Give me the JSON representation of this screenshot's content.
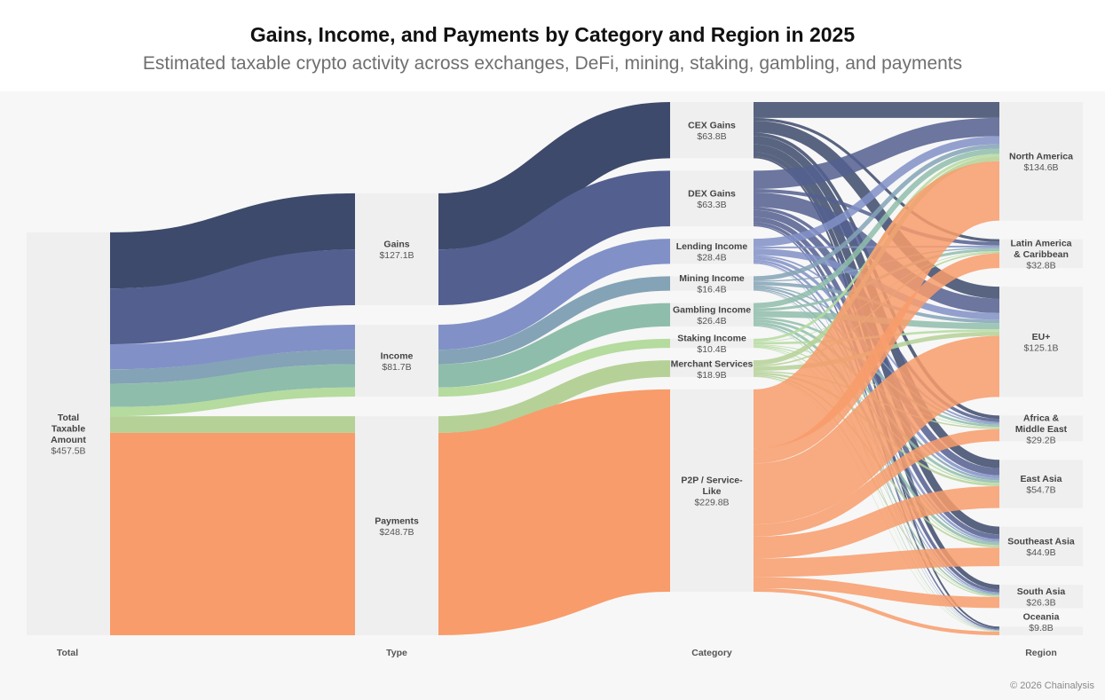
{
  "title": "Gains, Income, and Payments by Category and Region in 2025",
  "subtitle": "Estimated taxable crypto activity across exchanges, DeFi, mining, staking, gambling, and payments",
  "credit": "© 2026 Chainalysis",
  "chart_data": {
    "type": "sankey",
    "unit": "$B",
    "columns": [
      "Total",
      "Type",
      "Category",
      "Region"
    ],
    "nodes": [
      {
        "id": "total",
        "label": "Total Taxable Amount",
        "value_label": "$457.5B",
        "value": 457.5,
        "column": 0
      },
      {
        "id": "gains",
        "label": "Gains",
        "value_label": "$127.1B",
        "value": 127.1,
        "column": 1
      },
      {
        "id": "income",
        "label": "Income",
        "value_label": "$81.7B",
        "value": 81.7,
        "column": 1
      },
      {
        "id": "payments",
        "label": "Payments",
        "value_label": "$248.7B",
        "value": 248.7,
        "column": 1
      },
      {
        "id": "cex",
        "label": "CEX Gains",
        "value_label": "$63.8B",
        "value": 63.8,
        "column": 2,
        "color": "#3d4a6b"
      },
      {
        "id": "dex",
        "label": "DEX Gains",
        "value_label": "$63.3B",
        "value": 63.3,
        "column": 2,
        "color": "#535f8f"
      },
      {
        "id": "lending",
        "label": "Lending Income",
        "value_label": "$28.4B",
        "value": 28.4,
        "column": 2,
        "color": "#8191c7"
      },
      {
        "id": "mining",
        "label": "Mining Income",
        "value_label": "$16.4B",
        "value": 16.4,
        "column": 2,
        "color": "#84a3b6"
      },
      {
        "id": "gambling",
        "label": "Gambling Income",
        "value_label": "$26.4B",
        "value": 26.4,
        "column": 2,
        "color": "#8fbdab"
      },
      {
        "id": "staking",
        "label": "Staking Income",
        "value_label": "$10.4B",
        "value": 10.4,
        "column": 2,
        "color": "#b5db9f"
      },
      {
        "id": "merchant",
        "label": "Merchant Services",
        "value_label": "$18.9B",
        "value": 18.9,
        "column": 2,
        "color": "#b5d197"
      },
      {
        "id": "p2p",
        "label": "P2P / Service-Like",
        "value_label": "$229.8B",
        "value": 229.8,
        "column": 2,
        "color": "#f89c6b"
      },
      {
        "id": "na",
        "label": "North America",
        "value_label": "$134.6B",
        "value": 134.6,
        "column": 3
      },
      {
        "id": "latam",
        "label": "Latin America & Caribbean",
        "value_label": "$32.8B",
        "value": 32.8,
        "column": 3
      },
      {
        "id": "eu",
        "label": "EU+",
        "value_label": "$125.1B",
        "value": 125.1,
        "column": 3
      },
      {
        "id": "mea",
        "label": "Africa & Middle East",
        "value_label": "$29.2B",
        "value": 29.2,
        "column": 3
      },
      {
        "id": "eastasia",
        "label": "East Asia",
        "value_label": "$54.7B",
        "value": 54.7,
        "column": 3
      },
      {
        "id": "sea",
        "label": "Southeast Asia",
        "value_label": "$44.9B",
        "value": 44.9,
        "column": 3
      },
      {
        "id": "southasia",
        "label": "South Asia",
        "value_label": "$26.3B",
        "value": 26.3,
        "column": 3
      },
      {
        "id": "oceania",
        "label": "Oceania",
        "value_label": "$9.8B",
        "value": 9.8,
        "column": 3
      }
    ],
    "links": [
      {
        "source": "total",
        "target": "gains",
        "value": 127.1
      },
      {
        "source": "total",
        "target": "income",
        "value": 81.7
      },
      {
        "source": "total",
        "target": "payments",
        "value": 248.7
      },
      {
        "source": "gains",
        "target": "cex",
        "value": 63.8
      },
      {
        "source": "gains",
        "target": "dex",
        "value": 63.3
      },
      {
        "source": "income",
        "target": "lending",
        "value": 28.4
      },
      {
        "source": "income",
        "target": "mining",
        "value": 16.4
      },
      {
        "source": "income",
        "target": "gambling",
        "value": 26.4
      },
      {
        "source": "income",
        "target": "staking",
        "value": 10.4
      },
      {
        "source": "payments",
        "target": "merchant",
        "value": 18.9
      },
      {
        "source": "payments",
        "target": "p2p",
        "value": 229.8
      },
      {
        "source": "cex",
        "target": "na",
        "value": 18.0
      },
      {
        "source": "cex",
        "target": "latam",
        "value": 3.2
      },
      {
        "source": "cex",
        "target": "eu",
        "value": 13.5
      },
      {
        "source": "cex",
        "target": "mea",
        "value": 3.8
      },
      {
        "source": "cex",
        "target": "eastasia",
        "value": 9.5
      },
      {
        "source": "cex",
        "target": "sea",
        "value": 8.8
      },
      {
        "source": "cex",
        "target": "southasia",
        "value": 5.0
      },
      {
        "source": "cex",
        "target": "oceania",
        "value": 2.0
      },
      {
        "source": "dex",
        "target": "na",
        "value": 20.8
      },
      {
        "source": "dex",
        "target": "latam",
        "value": 4.0
      },
      {
        "source": "dex",
        "target": "eu",
        "value": 16.5
      },
      {
        "source": "dex",
        "target": "mea",
        "value": 3.5
      },
      {
        "source": "dex",
        "target": "eastasia",
        "value": 8.0
      },
      {
        "source": "dex",
        "target": "sea",
        "value": 5.5
      },
      {
        "source": "dex",
        "target": "southasia",
        "value": 3.5
      },
      {
        "source": "dex",
        "target": "oceania",
        "value": 1.5
      },
      {
        "source": "lending",
        "target": "na",
        "value": 9.0
      },
      {
        "source": "lending",
        "target": "latam",
        "value": 2.0
      },
      {
        "source": "lending",
        "target": "eu",
        "value": 7.5
      },
      {
        "source": "lending",
        "target": "mea",
        "value": 1.8
      },
      {
        "source": "lending",
        "target": "eastasia",
        "value": 3.5
      },
      {
        "source": "lending",
        "target": "sea",
        "value": 2.6
      },
      {
        "source": "lending",
        "target": "southasia",
        "value": 1.5
      },
      {
        "source": "lending",
        "target": "oceania",
        "value": 0.5
      },
      {
        "source": "mining",
        "target": "na",
        "value": 5.0
      },
      {
        "source": "mining",
        "target": "latam",
        "value": 1.4
      },
      {
        "source": "mining",
        "target": "eu",
        "value": 3.8
      },
      {
        "source": "mining",
        "target": "mea",
        "value": 1.5
      },
      {
        "source": "mining",
        "target": "eastasia",
        "value": 2.2
      },
      {
        "source": "mining",
        "target": "sea",
        "value": 1.3
      },
      {
        "source": "mining",
        "target": "southasia",
        "value": 0.8
      },
      {
        "source": "mining",
        "target": "oceania",
        "value": 0.4
      },
      {
        "source": "gambling",
        "target": "na",
        "value": 6.0
      },
      {
        "source": "gambling",
        "target": "latam",
        "value": 3.0
      },
      {
        "source": "gambling",
        "target": "eu",
        "value": 7.0
      },
      {
        "source": "gambling",
        "target": "mea",
        "value": 2.5
      },
      {
        "source": "gambling",
        "target": "eastasia",
        "value": 3.0
      },
      {
        "source": "gambling",
        "target": "sea",
        "value": 3.0
      },
      {
        "source": "gambling",
        "target": "southasia",
        "value": 1.4
      },
      {
        "source": "gambling",
        "target": "oceania",
        "value": 0.5
      },
      {
        "source": "staking",
        "target": "na",
        "value": 3.0
      },
      {
        "source": "staking",
        "target": "latam",
        "value": 0.8
      },
      {
        "source": "staking",
        "target": "eu",
        "value": 2.7
      },
      {
        "source": "staking",
        "target": "mea",
        "value": 0.8
      },
      {
        "source": "staking",
        "target": "eastasia",
        "value": 1.3
      },
      {
        "source": "staking",
        "target": "sea",
        "value": 0.9
      },
      {
        "source": "staking",
        "target": "southasia",
        "value": 0.6
      },
      {
        "source": "staking",
        "target": "oceania",
        "value": 0.3
      },
      {
        "source": "merchant",
        "target": "na",
        "value": 5.5
      },
      {
        "source": "merchant",
        "target": "latam",
        "value": 1.6
      },
      {
        "source": "merchant",
        "target": "eu",
        "value": 4.8
      },
      {
        "source": "merchant",
        "target": "mea",
        "value": 1.5
      },
      {
        "source": "merchant",
        "target": "eastasia",
        "value": 2.4
      },
      {
        "source": "merchant",
        "target": "sea",
        "value": 1.7
      },
      {
        "source": "merchant",
        "target": "southasia",
        "value": 1.0
      },
      {
        "source": "merchant",
        "target": "oceania",
        "value": 0.4
      },
      {
        "source": "p2p",
        "target": "na",
        "value": 67.3
      },
      {
        "source": "p2p",
        "target": "latam",
        "value": 16.8
      },
      {
        "source": "p2p",
        "target": "eu",
        "value": 69.3
      },
      {
        "source": "p2p",
        "target": "mea",
        "value": 13.8
      },
      {
        "source": "p2p",
        "target": "eastasia",
        "value": 24.8
      },
      {
        "source": "p2p",
        "target": "sea",
        "value": 21.1
      },
      {
        "source": "p2p",
        "target": "southasia",
        "value": 12.5
      },
      {
        "source": "p2p",
        "target": "oceania",
        "value": 4.2
      }
    ],
    "colors": {
      "node_bg": "#efefef",
      "gains_mix": [
        "#3d4a6b",
        "#535f8f"
      ],
      "income_mix": [
        "#8191c7",
        "#84a3b6",
        "#8fbdab",
        "#b5db9f"
      ],
      "payments_mix": [
        "#b5d197",
        "#f89c6b"
      ]
    }
  }
}
